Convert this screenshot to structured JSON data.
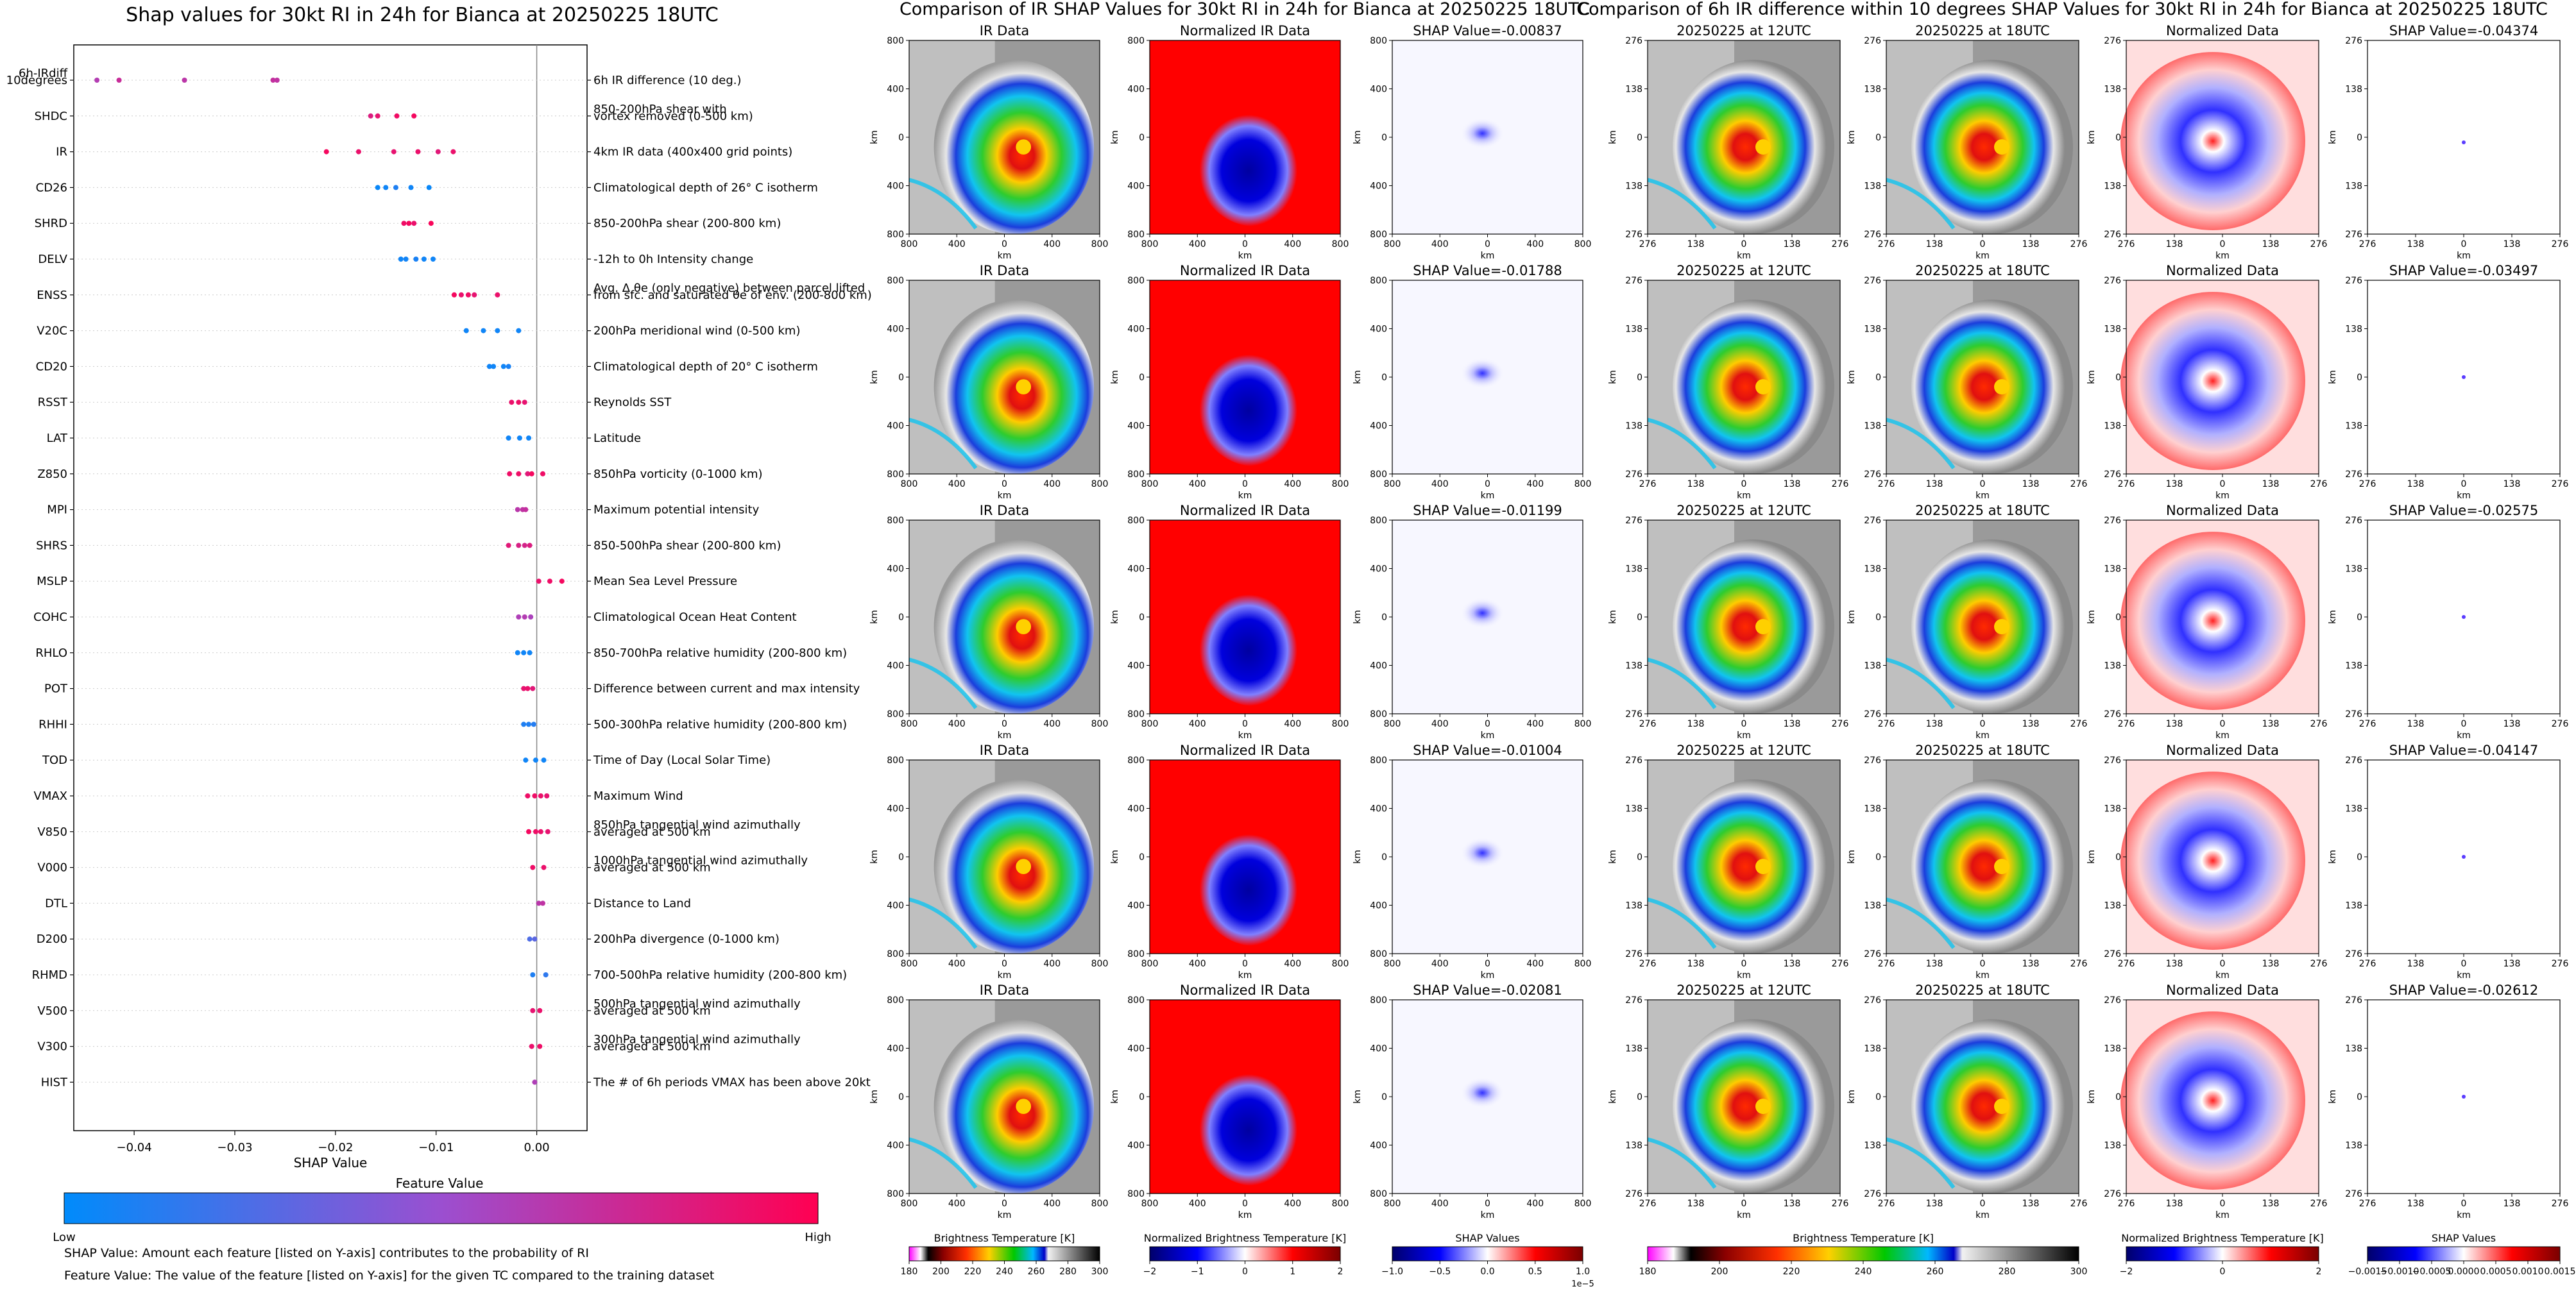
{
  "colors": {
    "feature_low": "#008bfb",
    "feature_high": "#ff0052",
    "feature_mid": "#9b4fd0",
    "ir_gray": "#9a9a9a",
    "ir_colored": [
      "#1a3ddc",
      "#11c4f0",
      "#2ecc2e",
      "#fff200",
      "#ff8c00",
      "#e01010",
      "#8b0000"
    ],
    "norm_red": "#ff0000",
    "norm_blue": "#0000cc",
    "shap_neutral": "#f7f7ff"
  },
  "chart_data": [
    {
      "type": "scatter",
      "title": "Shap values for 30kt RI in 24h for Bianca at 20250225 18UTC",
      "xlabel": "SHAP Value",
      "xticks": [
        "−0.04",
        "−0.03",
        "−0.02",
        "−0.01",
        "0.00"
      ],
      "xlim": [
        -0.046,
        0.005
      ],
      "features": [
        {
          "code": "6h-IRdiff\n10degrees",
          "desc": "6h IR difference (10 deg.)",
          "points": [
            [
              -0.0437,
              0.62
            ],
            [
              -0.0415,
              0.72
            ],
            [
              -0.035,
              0.66
            ],
            [
              -0.0262,
              0.7
            ],
            [
              -0.0258,
              0.68
            ]
          ]
        },
        {
          "code": "SHDC",
          "desc": "850-200hPa shear with\nvortex removed (0-500 km)",
          "points": [
            [
              -0.0165,
              0.82
            ],
            [
              -0.0158,
              0.88
            ],
            [
              -0.0139,
              0.93
            ],
            [
              -0.0122,
              0.95
            ]
          ]
        },
        {
          "code": "IR",
          "desc": "4km IR data (400x400 grid points)",
          "points": [
            [
              -0.0209,
              0.95
            ],
            [
              -0.0177,
              0.9
            ],
            [
              -0.0142,
              0.88
            ],
            [
              -0.0118,
              0.9
            ],
            [
              -0.0098,
              0.85
            ],
            [
              -0.0083,
              0.9
            ]
          ]
        },
        {
          "code": "CD26",
          "desc": "Climatological depth of 26° C isotherm",
          "points": [
            [
              -0.0158,
              0.03
            ],
            [
              -0.015,
              0.05
            ],
            [
              -0.014,
              0.1
            ],
            [
              -0.0125,
              0.05
            ],
            [
              -0.0107,
              0.03
            ]
          ]
        },
        {
          "code": "SHRD",
          "desc": "850-200hPa shear (200-800 km)",
          "points": [
            [
              -0.0132,
              0.92
            ],
            [
              -0.0127,
              0.95
            ],
            [
              -0.0122,
              0.9
            ],
            [
              -0.0105,
              0.97
            ]
          ]
        },
        {
          "code": "DELV",
          "desc": "-12h to 0h Intensity change",
          "points": [
            [
              -0.0135,
              0.05
            ],
            [
              -0.013,
              0.06
            ],
            [
              -0.012,
              0.08
            ],
            [
              -0.0112,
              0.05
            ],
            [
              -0.0103,
              0.05
            ]
          ]
        },
        {
          "code": "ENSS",
          "desc": "Avg. Δ θe (only negative) between parcel lifted\nfrom sfc. and saturated θe of env. (200-800 km)",
          "points": [
            [
              -0.0082,
              0.95
            ],
            [
              -0.0075,
              0.9
            ],
            [
              -0.0068,
              0.93
            ],
            [
              -0.0062,
              0.88
            ],
            [
              -0.0039,
              0.9
            ]
          ]
        },
        {
          "code": "V20C",
          "desc": "200hPa meridional wind (0-500 km)",
          "points": [
            [
              -0.007,
              0.05
            ],
            [
              -0.0053,
              0.05
            ],
            [
              -0.0039,
              0.05
            ],
            [
              -0.0018,
              0.05
            ]
          ]
        },
        {
          "code": "CD20",
          "desc": "Climatological depth of 20° C isotherm",
          "points": [
            [
              -0.0047,
              0.05
            ],
            [
              -0.0043,
              0.05
            ],
            [
              -0.0033,
              0.05
            ],
            [
              -0.0028,
              0.08
            ]
          ]
        },
        {
          "code": "RSST",
          "desc": "Reynolds SST",
          "points": [
            [
              -0.0025,
              0.9
            ],
            [
              -0.0018,
              0.92
            ],
            [
              -0.0012,
              0.88
            ]
          ]
        },
        {
          "code": "LAT",
          "desc": "Latitude",
          "points": [
            [
              -0.0028,
              0.05
            ],
            [
              -0.0017,
              0.05
            ],
            [
              -0.0008,
              0.05
            ]
          ]
        },
        {
          "code": "Z850",
          "desc": "850hPa vorticity (0-1000 km)",
          "points": [
            [
              -0.0027,
              0.92
            ],
            [
              -0.0018,
              0.92
            ],
            [
              -0.0009,
              0.85
            ],
            [
              -0.0005,
              0.95
            ],
            [
              0.0006,
              0.92
            ]
          ]
        },
        {
          "code": "MPI",
          "desc": "Maximum potential intensity",
          "points": [
            [
              -0.0019,
              0.65
            ],
            [
              -0.0014,
              0.68
            ],
            [
              -0.0011,
              0.7
            ]
          ]
        },
        {
          "code": "SHRS",
          "desc": "850-500hPa shear (200-800 km)",
          "points": [
            [
              -0.0028,
              0.85
            ],
            [
              -0.0018,
              0.8
            ],
            [
              -0.0012,
              0.78
            ],
            [
              -0.0007,
              0.82
            ]
          ]
        },
        {
          "code": "MSLP",
          "desc": "Mean Sea Level Pressure",
          "points": [
            [
              0.0002,
              0.9
            ],
            [
              0.0013,
              0.92
            ],
            [
              0.0025,
              0.95
            ]
          ]
        },
        {
          "code": "COHC",
          "desc": "Climatological Ocean Heat Content",
          "points": [
            [
              -0.0018,
              0.6
            ],
            [
              -0.0012,
              0.62
            ],
            [
              -0.0006,
              0.58
            ]
          ]
        },
        {
          "code": "RHLO",
          "desc": "850-700hPa relative humidity (200-800 km)",
          "points": [
            [
              -0.0019,
              0.05
            ],
            [
              -0.0013,
              0.05
            ],
            [
              -0.0007,
              0.05
            ]
          ]
        },
        {
          "code": "POT",
          "desc": "Difference between current and max intensity",
          "points": [
            [
              -0.0013,
              0.88
            ],
            [
              -0.0009,
              0.9
            ],
            [
              -0.0004,
              0.85
            ]
          ]
        },
        {
          "code": "RHHI",
          "desc": "500-300hPa relative humidity (200-800 km)",
          "points": [
            [
              -0.0013,
              0.1
            ],
            [
              -0.0008,
              0.1
            ],
            [
              -0.0003,
              0.12
            ]
          ]
        },
        {
          "code": "TOD",
          "desc": "Time of Day (Local Solar Time)",
          "points": [
            [
              -0.0011,
              0.05
            ],
            [
              -0.0001,
              0.05
            ],
            [
              0.0007,
              0.05
            ]
          ]
        },
        {
          "code": "VMAX",
          "desc": "Maximum Wind",
          "points": [
            [
              -0.0009,
              0.92
            ],
            [
              -0.0002,
              0.92
            ],
            [
              0.0004,
              0.9
            ],
            [
              0.001,
              0.88
            ]
          ]
        },
        {
          "code": "V850",
          "desc": "850hPa tangential wind azimuthally\naveraged at 500 km",
          "points": [
            [
              -0.0008,
              0.95
            ],
            [
              -0.0001,
              0.92
            ],
            [
              0.0004,
              0.9
            ],
            [
              0.0011,
              0.88
            ]
          ]
        },
        {
          "code": "V000",
          "desc": "1000hPa tangential wind azimuthally\naveraged at 500 km",
          "points": [
            [
              -0.0004,
              0.92
            ],
            [
              0.0007,
              0.9
            ]
          ]
        },
        {
          "code": "DTL",
          "desc": "Distance to Land",
          "points": [
            [
              0.0002,
              0.65
            ],
            [
              0.0006,
              0.68
            ]
          ]
        },
        {
          "code": "D200",
          "desc": "200hPa divergence (0-1000 km)",
          "points": [
            [
              -0.0007,
              0.25
            ],
            [
              -0.0002,
              0.3
            ]
          ]
        },
        {
          "code": "RHMD",
          "desc": "700-500hPa relative humidity (200-800 km)",
          "points": [
            [
              -0.0004,
              0.1
            ],
            [
              0.0009,
              0.15
            ]
          ]
        },
        {
          "code": "V500",
          "desc": "500hPa tangential wind azimuthally\naveraged at 500 km",
          "points": [
            [
              -0.0004,
              0.88
            ],
            [
              0.0003,
              0.9
            ]
          ]
        },
        {
          "code": "V300",
          "desc": "300hPa tangential wind azimuthally\naveraged at 500 km",
          "points": [
            [
              -0.0005,
              0.9
            ],
            [
              0.0003,
              0.92
            ]
          ]
        },
        {
          "code": "HIST",
          "desc": "The # of 6h periods VMAX has been above 20kt",
          "points": [
            [
              -0.0002,
              0.6
            ]
          ]
        }
      ],
      "colorbar": {
        "label": "Feature Value",
        "low": "Low",
        "high": "High"
      }
    },
    {
      "type": "heatmap",
      "title": "Comparison of IR SHAP Values for 30kt RI in 24h for Bianca at 20250225 18UTC",
      "column_titles": [
        "IR Data",
        "Normalized IR Data"
      ],
      "shap_titles": [
        "SHAP Value=-0.00837",
        "SHAP Value=-0.01788",
        "SHAP Value=-0.01199",
        "SHAP Value=-0.01004",
        "SHAP Value=-0.02081"
      ],
      "axis_label": "km",
      "y_ticks": [
        "800",
        "400",
        "0",
        "400",
        "800"
      ],
      "x_ticks": [
        "800",
        "400",
        "0",
        "400",
        "800"
      ],
      "colorbars": [
        {
          "label": "Brightness Temperature [K]",
          "ticks": [
            "180",
            "200",
            "220",
            "240",
            "260",
            "280",
            "300"
          ]
        },
        {
          "label": "Normalized Brightness Temperature [K]",
          "ticks": [
            "−2",
            "−1",
            "0",
            "1",
            "2"
          ]
        },
        {
          "label": "SHAP Values",
          "ticks": [
            "−1.0",
            "−0.5",
            "0.0",
            "0.5",
            "1.0"
          ],
          "offset": "1e−5"
        }
      ]
    },
    {
      "type": "heatmap",
      "title": "Comparison of 6h IR difference within 10 degrees SHAP Values for 30kt RI in 24h for Bianca at 20250225 18UTC",
      "column_titles": [
        "20250225 at 12UTC",
        "20250225 at 18UTC",
        "Normalized Data"
      ],
      "shap_titles": [
        "SHAP Value=-0.04374",
        "SHAP Value=-0.03497",
        "SHAP Value=-0.02575",
        "SHAP Value=-0.04147",
        "SHAP Value=-0.02612"
      ],
      "axis_label": "km",
      "y_ticks": [
        "276",
        "138",
        "0",
        "138",
        "276"
      ],
      "x_ticks": [
        "276",
        "138",
        "0",
        "138",
        "276"
      ],
      "colorbars": [
        {
          "label": "Brightness Temperature [K]",
          "ticks": [
            "180",
            "200",
            "220",
            "240",
            "260",
            "280",
            "300"
          ]
        },
        {
          "label": "Normalized Brightness Temperature [K]",
          "ticks": [
            "−2",
            "0",
            "2"
          ]
        },
        {
          "label": "SHAP Values",
          "ticks": [
            "−0.0015",
            "−0.0010",
            "−0.0005",
            "0.0000",
            "0.0005",
            "0.0010",
            "0.0015"
          ]
        }
      ]
    }
  ],
  "footnotes": [
    "SHAP Value: Amount each feature [listed on Y-axis] contributes to the probability of RI",
    "Feature Value: The value of the feature [listed on Y-axis] for the given TC compared to the training dataset"
  ]
}
